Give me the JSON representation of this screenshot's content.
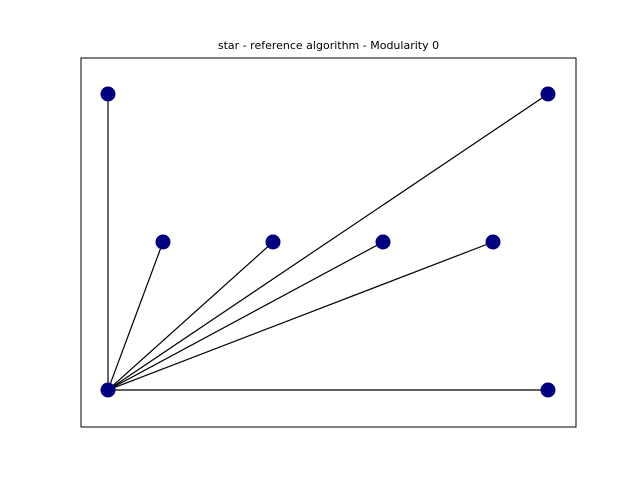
{
  "title": "star - reference algorithm - Modularity 0"
}
